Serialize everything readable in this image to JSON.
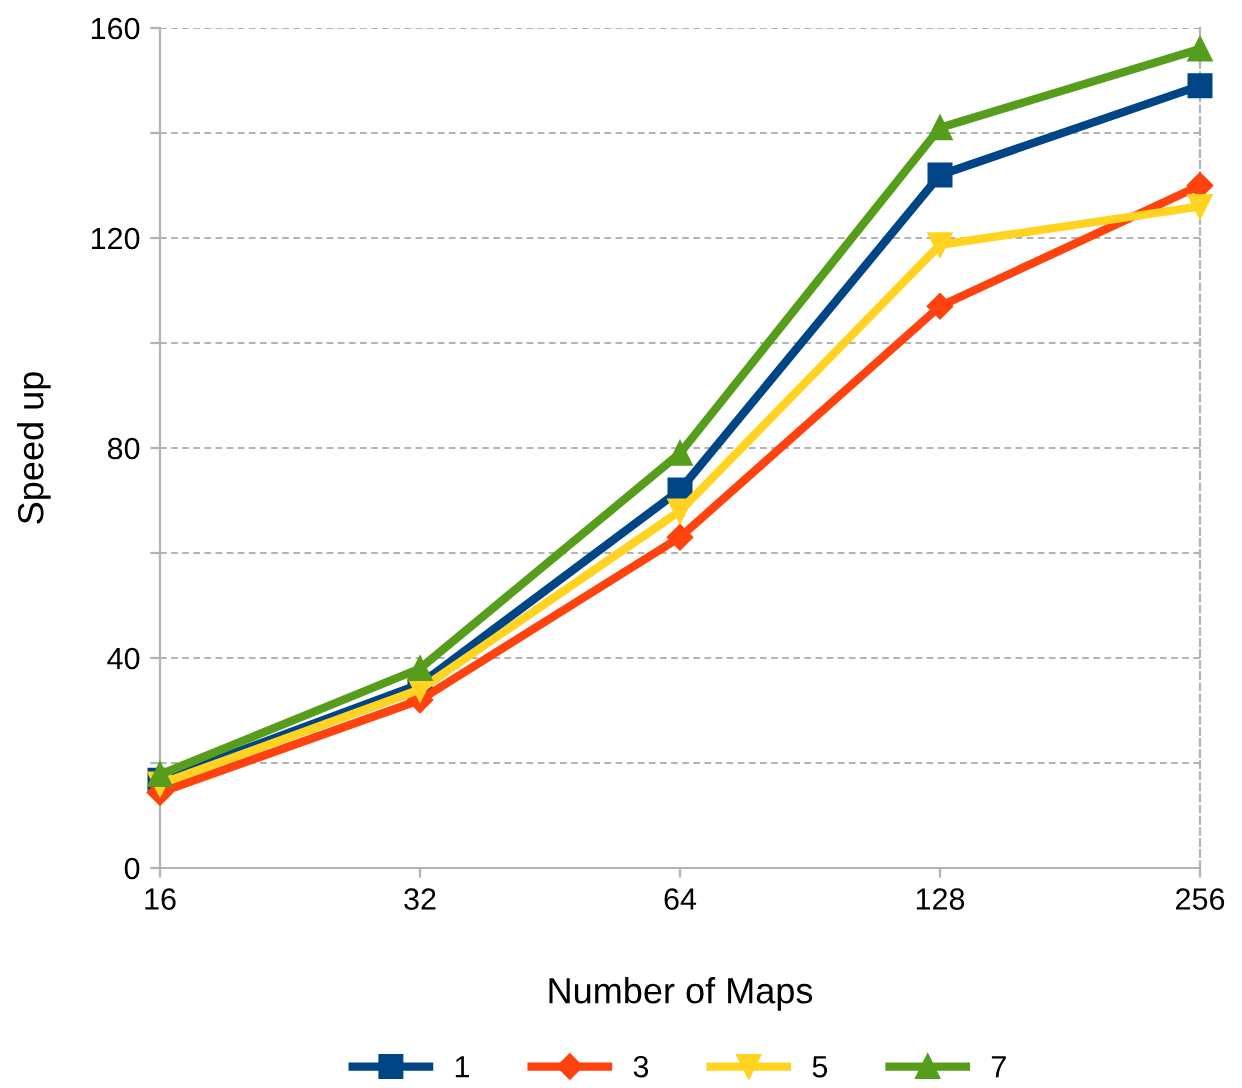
{
  "chart_data": {
    "type": "line",
    "xlabel": "Number of Maps",
    "ylabel": "Speed up",
    "categories": [
      "16",
      "32",
      "64",
      "128",
      "256"
    ],
    "ylim": [
      0,
      160
    ],
    "yticks": [
      0,
      {
        "value": 20,
        "label": null
      },
      40,
      {
        "value": 60,
        "label": null
      },
      80,
      {
        "value": 100,
        "label": null
      },
      120,
      {
        "value": 140,
        "label": null
      },
      160
    ],
    "grid": "y",
    "legend": "bottom",
    "line_style": "solid",
    "series": [
      {
        "name": "1",
        "color": "#004586",
        "marker": "square",
        "values": [
          16.7,
          35,
          72,
          132,
          149
        ]
      },
      {
        "name": "3",
        "color": "#ff420e",
        "marker": "diamond",
        "values": [
          14.4,
          32,
          63,
          107,
          130
        ]
      },
      {
        "name": "5",
        "color": "#ffd320",
        "marker": "triangle_down",
        "values": [
          16,
          34,
          68,
          118.7,
          126
        ]
      },
      {
        "name": "7",
        "color": "#579d1c",
        "marker": "triangle",
        "values": [
          17.8,
          38,
          79,
          141,
          156
        ]
      }
    ]
  }
}
